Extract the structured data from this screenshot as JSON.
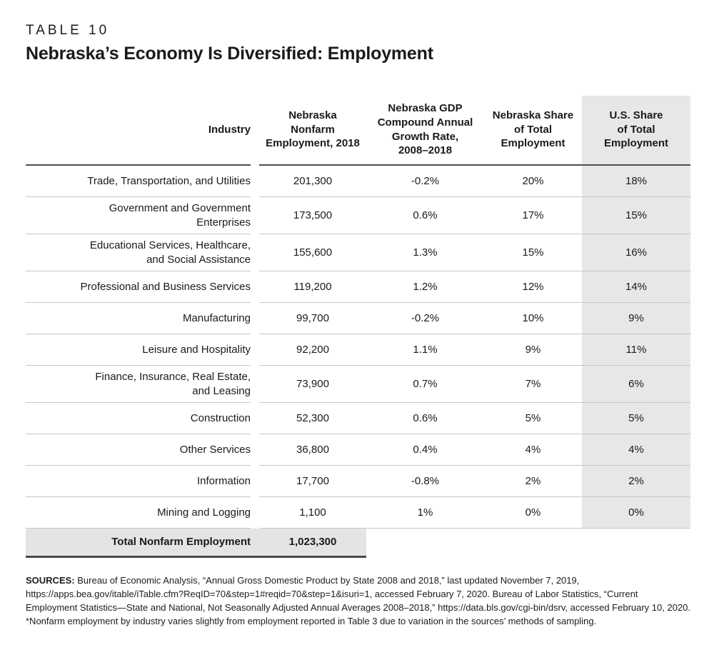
{
  "page": {
    "label": "TABLE 10",
    "title": "Nebraska’s Economy Is Diversified: Employment"
  },
  "table": {
    "columns": {
      "industry": "Industry",
      "employment": "Nebraska\nNonfarm\nEmployment, 2018",
      "growth": "Nebraska GDP\nCompound Annual\nGrowth Rate,\n2008–2018",
      "ne_share": "Nebraska Share\nof Total\nEmployment",
      "us_share": "U.S. Share\nof Total\nEmployment"
    },
    "rows": [
      {
        "industry": "Trade, Transportation, and Utilities",
        "employment": "201,300",
        "growth": "-0.2%",
        "ne_share": "20%",
        "us_share": "18%"
      },
      {
        "industry": "Government and Government\nEnterprises",
        "employment": "173,500",
        "growth": "0.6%",
        "ne_share": "17%",
        "us_share": "15%"
      },
      {
        "industry": "Educational Services, Healthcare,\nand Social Assistance",
        "employment": "155,600",
        "growth": "1.3%",
        "ne_share": "15%",
        "us_share": "16%"
      },
      {
        "industry": "Professional and Business Services",
        "employment": "119,200",
        "growth": "1.2%",
        "ne_share": "12%",
        "us_share": "14%"
      },
      {
        "industry": "Manufacturing",
        "employment": "99,700",
        "growth": "-0.2%",
        "ne_share": "10%",
        "us_share": "9%"
      },
      {
        "industry": "Leisure and Hospitality",
        "employment": "92,200",
        "growth": "1.1%",
        "ne_share": "9%",
        "us_share": "11%"
      },
      {
        "industry": "Finance, Insurance, Real Estate,\nand Leasing",
        "employment": "73,900",
        "growth": "0.7%",
        "ne_share": "7%",
        "us_share": "6%"
      },
      {
        "industry": "Construction",
        "employment": "52,300",
        "growth": "0.6%",
        "ne_share": "5%",
        "us_share": "5%"
      },
      {
        "industry": "Other Services",
        "employment": "36,800",
        "growth": "0.4%",
        "ne_share": "4%",
        "us_share": "4%"
      },
      {
        "industry": "Information",
        "employment": "17,700",
        "growth": "-0.8%",
        "ne_share": "2%",
        "us_share": "2%"
      },
      {
        "industry": "Mining and Logging",
        "employment": "1,100",
        "growth": "1%",
        "ne_share": "0%",
        "us_share": "0%"
      }
    ],
    "total": {
      "label": "Total Nonfarm Employment",
      "value": "1,023,300"
    }
  },
  "footer": {
    "sources_label": "SOURCES:",
    "sources_text": " Bureau of Economic Analysis, “Annual Gross Domestic Product by State 2008 and 2018,” last updated November 7, 2019, https://apps.bea.gov/itable/iTable.cfm?ReqID=70&step=1#reqid=70&step=1&isuri=1, accessed February 7, 2020. Bureau of Labor Statistics, “Current Employment Statistics—State and National, Not Seasonally Adjusted Annual Averages 2008–2018,” https://data.bls.gov/cgi-bin/dsrv, accessed February 10, 2020.",
    "footnote": "*Nonfarm employment by industry varies slightly from employment reported in Table 3 due to variation in the sources’ methods of sampling."
  },
  "colors": {
    "shade_column": "#e7e7e6",
    "total_row_shade": "#e4e4e3",
    "row_divider": "#c7c7c7",
    "dark_rule": "#4e4e4e",
    "text": "#1a1a1a"
  }
}
